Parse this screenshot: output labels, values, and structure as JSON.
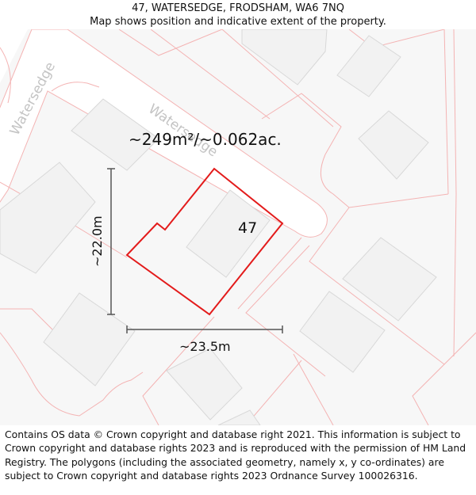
{
  "header": {
    "title": "47, WATERSEDGE, FRODSHAM, WA6 7NQ",
    "subtitle": "Map shows position and indicative extent of the property."
  },
  "map": {
    "area_label": "~249m²/~0.062ac.",
    "house_number": "47",
    "street_label_1": "Watersedge",
    "street_label_2": "Watersedge",
    "width_label": "~23.5m",
    "height_label": "~22.0m",
    "colors": {
      "property_outline": "#e31b1b",
      "parcel_lines": "#f4b3b3",
      "building_fill": "#f2f2f2",
      "building_stroke": "#d8d8d8",
      "road_fill": "#ffffff",
      "background": "#f7f7f7",
      "measure": "#555555",
      "street_text": "#c4c4c4"
    }
  },
  "footer": {
    "text": "Contains OS data © Crown copyright and database right 2021. This information is subject to Crown copyright and database rights 2023 and is reproduced with the permission of HM Land Registry. The polygons (including the associated geometry, namely x, y co-ordinates) are subject to Crown copyright and database rights 2023 Ordnance Survey 100026316."
  }
}
